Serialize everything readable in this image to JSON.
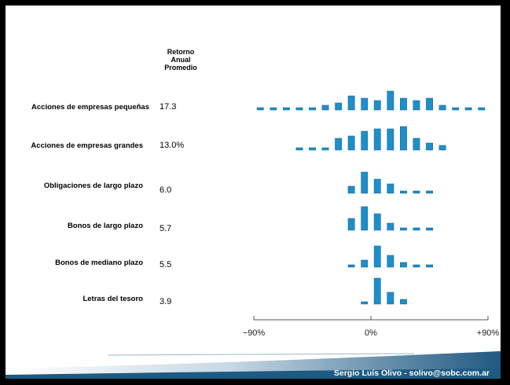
{
  "header": {
    "lines": [
      "Retorno",
      "Anual",
      "Promedio"
    ]
  },
  "footer": {
    "text": "Sergio Luís Olivo - solivo@sobc.com.ar"
  },
  "colors": {
    "bar": "#1e8ec9",
    "bar_edge": "#0c5f8e",
    "axis": "#555555",
    "footer_band": "#1f5a80"
  },
  "chart_data": {
    "type": "bar",
    "x_tick_labels": [
      "−90%",
      "0%",
      "+90%"
    ],
    "xlim": [
      -90,
      90
    ],
    "bin_width_pct": 10,
    "rows": [
      {
        "label": "Acciones de empresas pequeñas",
        "value": "17.3",
        "bins": [
          {
            "x": -85,
            "h": 1
          },
          {
            "x": -75,
            "h": 1
          },
          {
            "x": -65,
            "h": 1
          },
          {
            "x": -55,
            "h": 1
          },
          {
            "x": -45,
            "h": 1
          },
          {
            "x": -35,
            "h": 2
          },
          {
            "x": -25,
            "h": 3
          },
          {
            "x": -15,
            "h": 6
          },
          {
            "x": -5,
            "h": 5
          },
          {
            "x": 5,
            "h": 4
          },
          {
            "x": 15,
            "h": 8
          },
          {
            "x": 25,
            "h": 5
          },
          {
            "x": 35,
            "h": 4
          },
          {
            "x": 45,
            "h": 5
          },
          {
            "x": 55,
            "h": 2
          },
          {
            "x": 65,
            "h": 1
          },
          {
            "x": 75,
            "h": 1
          },
          {
            "x": 85,
            "h": 1
          }
        ]
      },
      {
        "label": "Acciones de empresas grandes",
        "value": "13.0%",
        "bins": [
          {
            "x": -55,
            "h": 1
          },
          {
            "x": -45,
            "h": 1
          },
          {
            "x": -35,
            "h": 1
          },
          {
            "x": -25,
            "h": 5
          },
          {
            "x": -15,
            "h": 6
          },
          {
            "x": -5,
            "h": 8
          },
          {
            "x": 5,
            "h": 9
          },
          {
            "x": 15,
            "h": 9
          },
          {
            "x": 25,
            "h": 10
          },
          {
            "x": 35,
            "h": 5
          },
          {
            "x": 45,
            "h": 3
          },
          {
            "x": 55,
            "h": 2
          }
        ]
      },
      {
        "label": "Obligaciones de largo plazo",
        "value": "6.0",
        "bins": [
          {
            "x": -15,
            "h": 3
          },
          {
            "x": -5,
            "h": 9
          },
          {
            "x": 5,
            "h": 6
          },
          {
            "x": 15,
            "h": 4
          },
          {
            "x": 25,
            "h": 1
          },
          {
            "x": 35,
            "h": 1
          },
          {
            "x": 45,
            "h": 1
          }
        ]
      },
      {
        "label": "Bonos de largo plazo",
        "value": "5.7",
        "bins": [
          {
            "x": -15,
            "h": 5
          },
          {
            "x": -5,
            "h": 10
          },
          {
            "x": 5,
            "h": 7
          },
          {
            "x": 15,
            "h": 3
          },
          {
            "x": 25,
            "h": 1
          },
          {
            "x": 35,
            "h": 1
          },
          {
            "x": 45,
            "h": 1
          }
        ]
      },
      {
        "label": "Bonos de mediano plazo",
        "value": "5.5",
        "bins": [
          {
            "x": -15,
            "h": 1
          },
          {
            "x": -5,
            "h": 3
          },
          {
            "x": 5,
            "h": 9
          },
          {
            "x": 15,
            "h": 5
          },
          {
            "x": 25,
            "h": 2
          },
          {
            "x": 35,
            "h": 1
          },
          {
            "x": 45,
            "h": 1
          }
        ]
      },
      {
        "label": "Letras del tesoro",
        "value": "3.9",
        "bins": [
          {
            "x": -5,
            "h": 1
          },
          {
            "x": 5,
            "h": 11
          },
          {
            "x": 15,
            "h": 5
          },
          {
            "x": 25,
            "h": 2
          }
        ]
      }
    ]
  }
}
